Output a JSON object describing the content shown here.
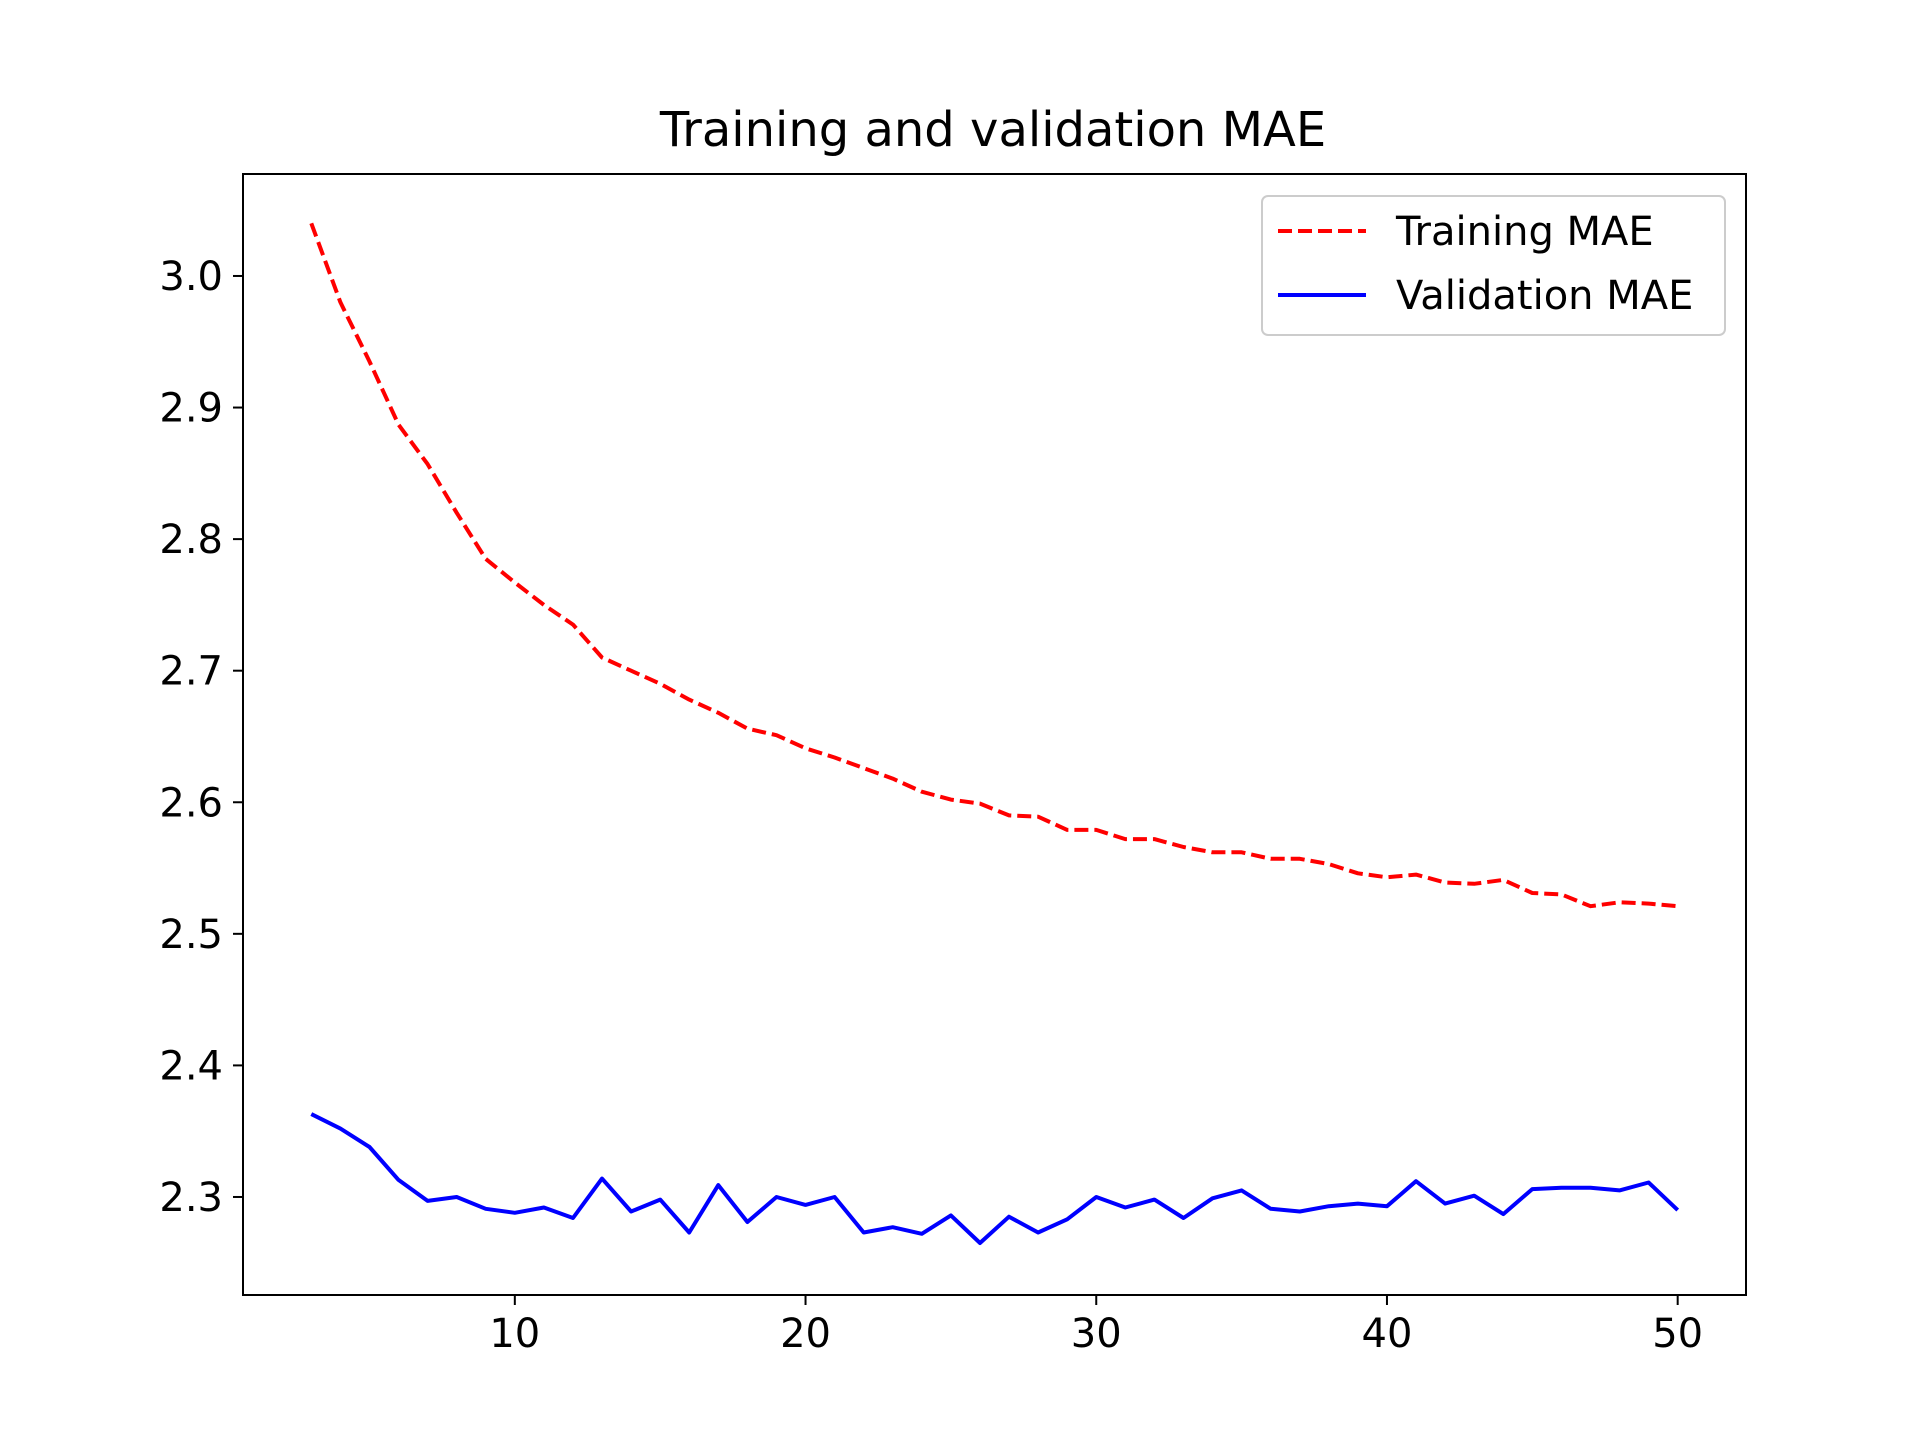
{
  "chart_data": {
    "type": "line",
    "title": "Training and validation MAE",
    "xlabel": "",
    "ylabel": "",
    "xlim": [
      0.65,
      52.35
    ],
    "ylim": [
      2.2255,
      3.0775
    ],
    "xticks": [
      10,
      20,
      30,
      40,
      50
    ],
    "yticks": [
      2.3,
      2.4,
      2.5,
      2.6,
      2.7,
      2.8,
      2.9,
      3.0
    ],
    "xtick_labels": [
      "10",
      "20",
      "30",
      "40",
      "50"
    ],
    "ytick_labels": [
      "2.3",
      "2.4",
      "2.5",
      "2.6",
      "2.7",
      "2.8",
      "2.9",
      "3.0"
    ],
    "grid": false,
    "legend_position": "top-right",
    "x": [
      3,
      4,
      5,
      6,
      7,
      8,
      9,
      10,
      11,
      12,
      13,
      14,
      15,
      16,
      17,
      18,
      19,
      20,
      21,
      22,
      23,
      24,
      25,
      26,
      27,
      28,
      29,
      30,
      31,
      32,
      33,
      34,
      35,
      36,
      37,
      38,
      39,
      40,
      41,
      42,
      43,
      44,
      45,
      46,
      47,
      48,
      49,
      50
    ],
    "series": [
      {
        "name": "Training MAE",
        "color": "#ff0000",
        "style": "dashed",
        "values": [
          3.04,
          2.98,
          2.935,
          2.887,
          2.857,
          2.82,
          2.785,
          2.767,
          2.75,
          2.735,
          2.71,
          2.7,
          2.69,
          2.678,
          2.668,
          2.656,
          2.651,
          2.641,
          2.634,
          2.626,
          2.618,
          2.608,
          2.602,
          2.599,
          2.59,
          2.589,
          2.579,
          2.579,
          2.572,
          2.572,
          2.566,
          2.562,
          2.562,
          2.557,
          2.557,
          2.553,
          2.546,
          2.543,
          2.545,
          2.539,
          2.538,
          2.541,
          2.531,
          2.53,
          2.521,
          2.524,
          2.523,
          2.521
        ]
      },
      {
        "name": "Validation MAE",
        "color": "#0000ff",
        "style": "solid",
        "values": [
          2.363,
          2.352,
          2.338,
          2.313,
          2.297,
          2.3,
          2.291,
          2.288,
          2.292,
          2.284,
          2.314,
          2.289,
          2.298,
          2.273,
          2.309,
          2.281,
          2.3,
          2.294,
          2.3,
          2.273,
          2.277,
          2.272,
          2.286,
          2.265,
          2.285,
          2.273,
          2.283,
          2.3,
          2.292,
          2.298,
          2.284,
          2.299,
          2.305,
          2.291,
          2.289,
          2.293,
          2.295,
          2.293,
          2.312,
          2.295,
          2.301,
          2.287,
          2.306,
          2.307,
          2.307,
          2.305,
          2.311,
          2.29
        ]
      }
    ]
  }
}
